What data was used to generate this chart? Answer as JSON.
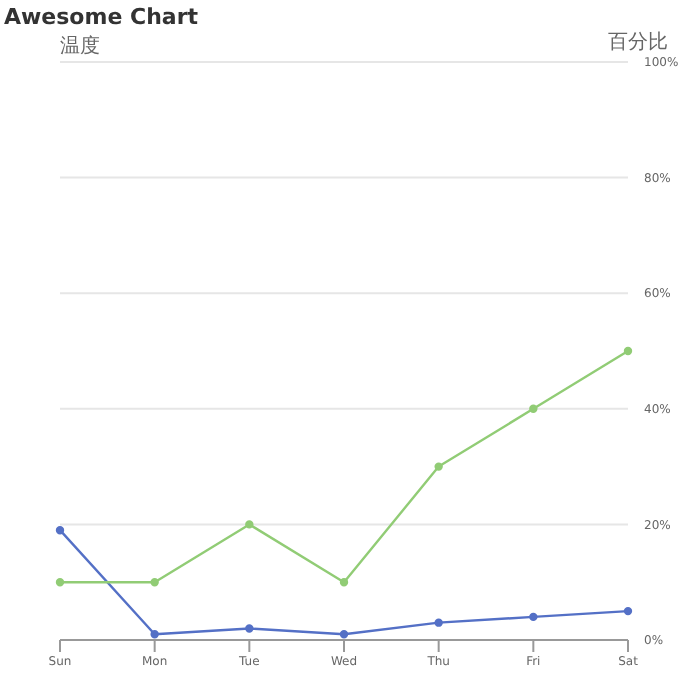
{
  "chart_data": {
    "type": "line",
    "title": "Awesome Chart",
    "ylabel": "温度",
    "y2label": "百分比",
    "categories": [
      "Sun",
      "Mon",
      "Tue",
      "Wed",
      "Thu",
      "Fri",
      "Sat"
    ],
    "series": [
      {
        "color": "#5470c6",
        "values": [
          19,
          1,
          2,
          1,
          3,
          4,
          5
        ],
        "axis": "y2"
      },
      {
        "color": "#91cc75",
        "values": [
          10,
          10,
          20,
          10,
          30,
          40,
          50
        ],
        "axis": "y2"
      }
    ],
    "y2lim": [
      0,
      100
    ],
    "y2ticks": [
      {
        "value": 0,
        "label": "0%"
      },
      {
        "value": 20,
        "label": "20%"
      },
      {
        "value": 40,
        "label": "40%"
      },
      {
        "value": 60,
        "label": "60%"
      },
      {
        "value": 80,
        "label": "80%"
      },
      {
        "value": 100,
        "label": "100%"
      }
    ],
    "grid": "y",
    "marker": "circle",
    "line_style": "solid"
  }
}
